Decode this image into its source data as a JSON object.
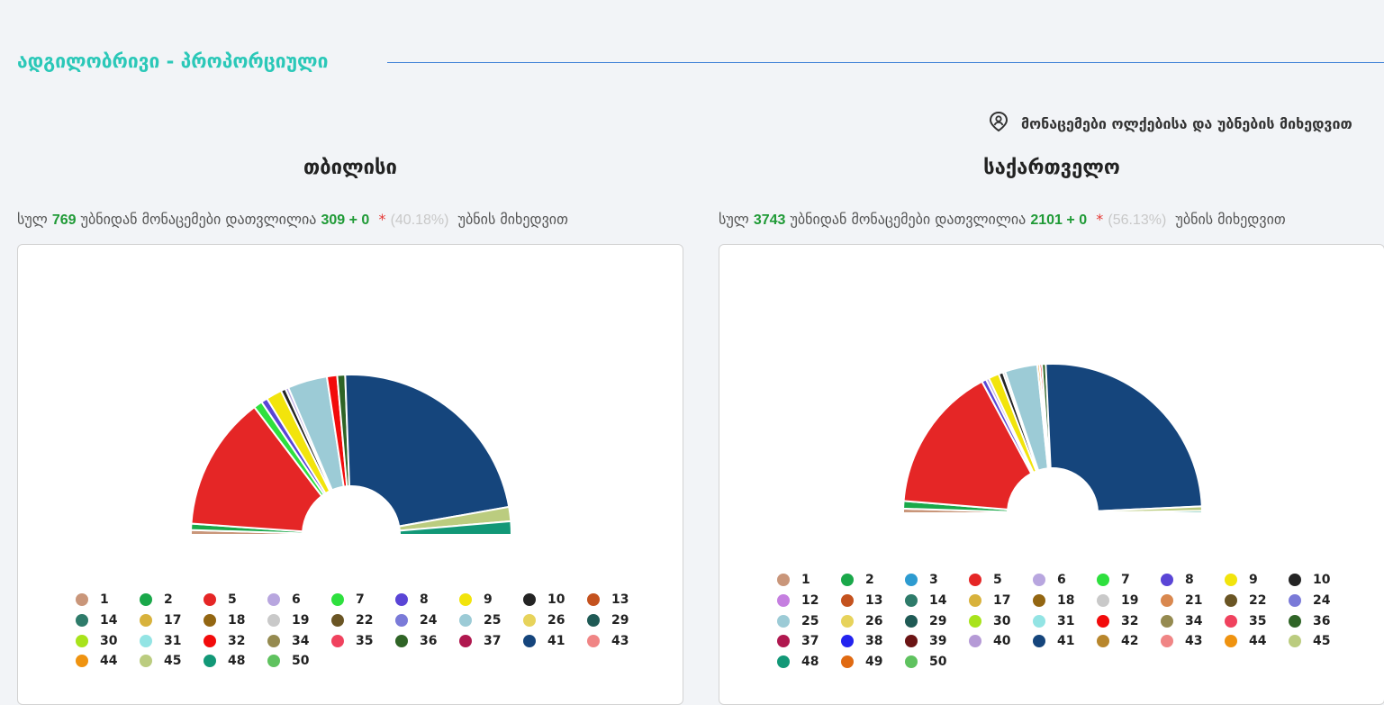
{
  "header": {
    "title": "ადგილობრივი - პროპორციული",
    "filter_label": "მონაცემები ოლქებისა და უბნების მიხედვით"
  },
  "panels": [
    {
      "title": "თბილისი",
      "summary": {
        "prefix": "სულ",
        "total": "769",
        "mid": "უბნიდან მონაცემები დათვლილია",
        "counted": "309 + 0",
        "star": "*",
        "pct": "(40.18%)",
        "suffix": "უბნის მიხედვით"
      },
      "legend": [
        "1",
        "2",
        "5",
        "6",
        "7",
        "8",
        "9",
        "10",
        "13",
        "14",
        "17",
        "18",
        "19",
        "22",
        "24",
        "25",
        "26",
        "29",
        "30",
        "31",
        "32",
        "34",
        "35",
        "36",
        "37",
        "41",
        "43",
        "44",
        "45",
        "48",
        "50"
      ]
    },
    {
      "title": "საქართველო",
      "summary": {
        "prefix": "სულ",
        "total": "3743",
        "mid": "უბნიდან მონაცემები დათვლილია",
        "counted": "2101 + 0",
        "star": "*",
        "pct": "(56.13%)",
        "suffix": "უბნის მიხედვით"
      },
      "legend": [
        "1",
        "2",
        "3",
        "5",
        "6",
        "7",
        "8",
        "9",
        "10",
        "12",
        "13",
        "14",
        "17",
        "18",
        "19",
        "21",
        "22",
        "24",
        "25",
        "26",
        "29",
        "30",
        "31",
        "32",
        "34",
        "35",
        "36",
        "37",
        "38",
        "39",
        "40",
        "41",
        "42",
        "43",
        "44",
        "45",
        "48",
        "49",
        "50"
      ]
    }
  ],
  "colors": {
    "1": "#c9967a",
    "2": "#1aa84a",
    "3": "#2d9bd0",
    "5": "#e52626",
    "6": "#b8a6df",
    "7": "#2ee03e",
    "8": "#5a45d6",
    "9": "#f2e40c",
    "10": "#242424",
    "12": "#c57fe0",
    "13": "#c4521e",
    "14": "#2e7b6a",
    "17": "#d8b23c",
    "18": "#936612",
    "19": "#c9c9c9",
    "21": "#d9884f",
    "22": "#6a5524",
    "24": "#7a7ad8",
    "25": "#9ccbd6",
    "26": "#e7d35b",
    "29": "#1f5a55",
    "30": "#a8e31b",
    "31": "#93e4e4",
    "32": "#f20b0b",
    "34": "#958a50",
    "35": "#f0425e",
    "36": "#2f6426",
    "37": "#b0184f",
    "38": "#2323ef",
    "39": "#6b1414",
    "40": "#b59ad6",
    "41": "#15457c",
    "42": "#b8862c",
    "43": "#f08585",
    "44": "#ef9310",
    "45": "#bbcc7f",
    "48": "#129877",
    "49": "#e06a12",
    "50": "#5fc25f"
  },
  "chart_data": [
    {
      "type": "pie",
      "title": "თბილისი",
      "slices": [
        {
          "label": "1",
          "value": 0.6
        },
        {
          "label": "2",
          "value": 0.8
        },
        {
          "label": "5",
          "value": 17.0
        },
        {
          "label": "7",
          "value": 1.1
        },
        {
          "label": "8",
          "value": 0.8
        },
        {
          "label": "9",
          "value": 2.0
        },
        {
          "label": "10",
          "value": 0.6
        },
        {
          "label": "6",
          "value": 0.4
        },
        {
          "label": "25",
          "value": 5.0
        },
        {
          "label": "32",
          "value": 1.3
        },
        {
          "label": "36",
          "value": 1.0
        },
        {
          "label": "41",
          "value": 28.6
        },
        {
          "label": "45",
          "value": 1.8
        },
        {
          "label": "48",
          "value": 1.7
        }
      ]
    },
    {
      "type": "pie",
      "title": "საქართველო",
      "slices": [
        {
          "label": "1",
          "value": 0.6
        },
        {
          "label": "2",
          "value": 1.0
        },
        {
          "label": "5",
          "value": 19.4
        },
        {
          "label": "8",
          "value": 0.6
        },
        {
          "label": "6",
          "value": 0.4
        },
        {
          "label": "9",
          "value": 1.4
        },
        {
          "label": "10",
          "value": 0.6
        },
        {
          "label": "19",
          "value": 0.3
        },
        {
          "label": "25",
          "value": 4.3
        },
        {
          "label": "44",
          "value": 0.3
        },
        {
          "label": "32",
          "value": 0.3
        },
        {
          "label": "36",
          "value": 0.5
        },
        {
          "label": "41",
          "value": 30.6
        },
        {
          "label": "45",
          "value": 0.6
        },
        {
          "label": "48",
          "value": 0.3
        }
      ]
    }
  ]
}
